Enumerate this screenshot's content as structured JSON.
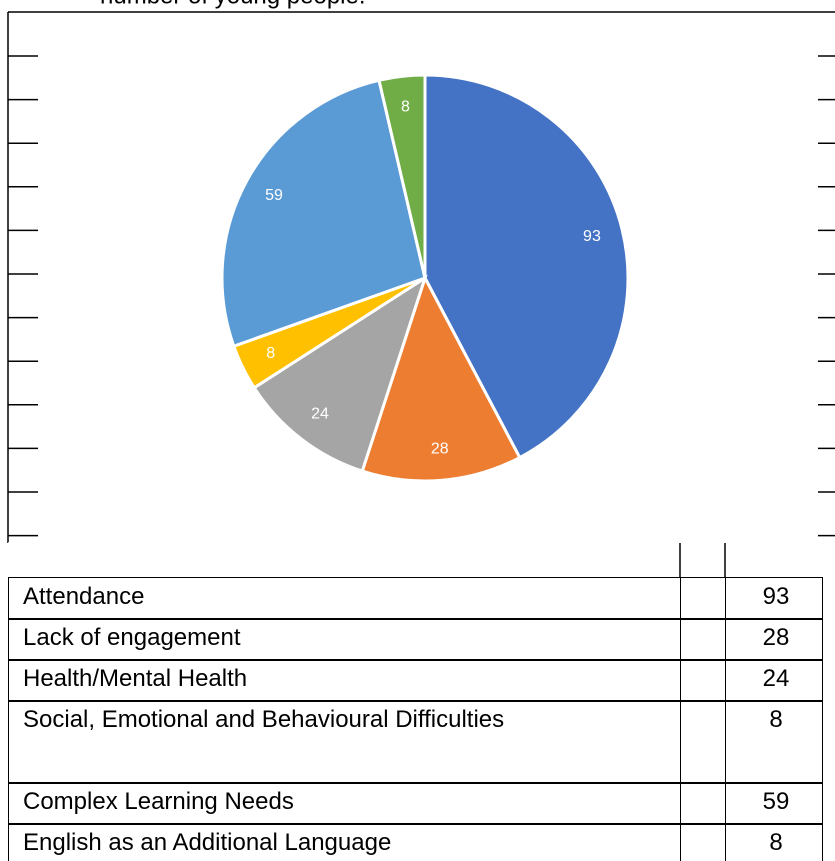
{
  "caption": "number of young people.",
  "chart_data": {
    "type": "pie",
    "categories": [
      "Attendance",
      "Lack of engagement",
      "Health/Mental Health",
      "Social, Emotional and Behavioural Difficulties",
      "Complex Learning Needs",
      "English as an Additional Language"
    ],
    "values": [
      93,
      28,
      24,
      8,
      59,
      8
    ],
    "colors": [
      "#4472c4",
      "#ed7d31",
      "#a5a5a5",
      "#ffc000",
      "#5b9bd5",
      "#70ad47"
    ]
  }
}
